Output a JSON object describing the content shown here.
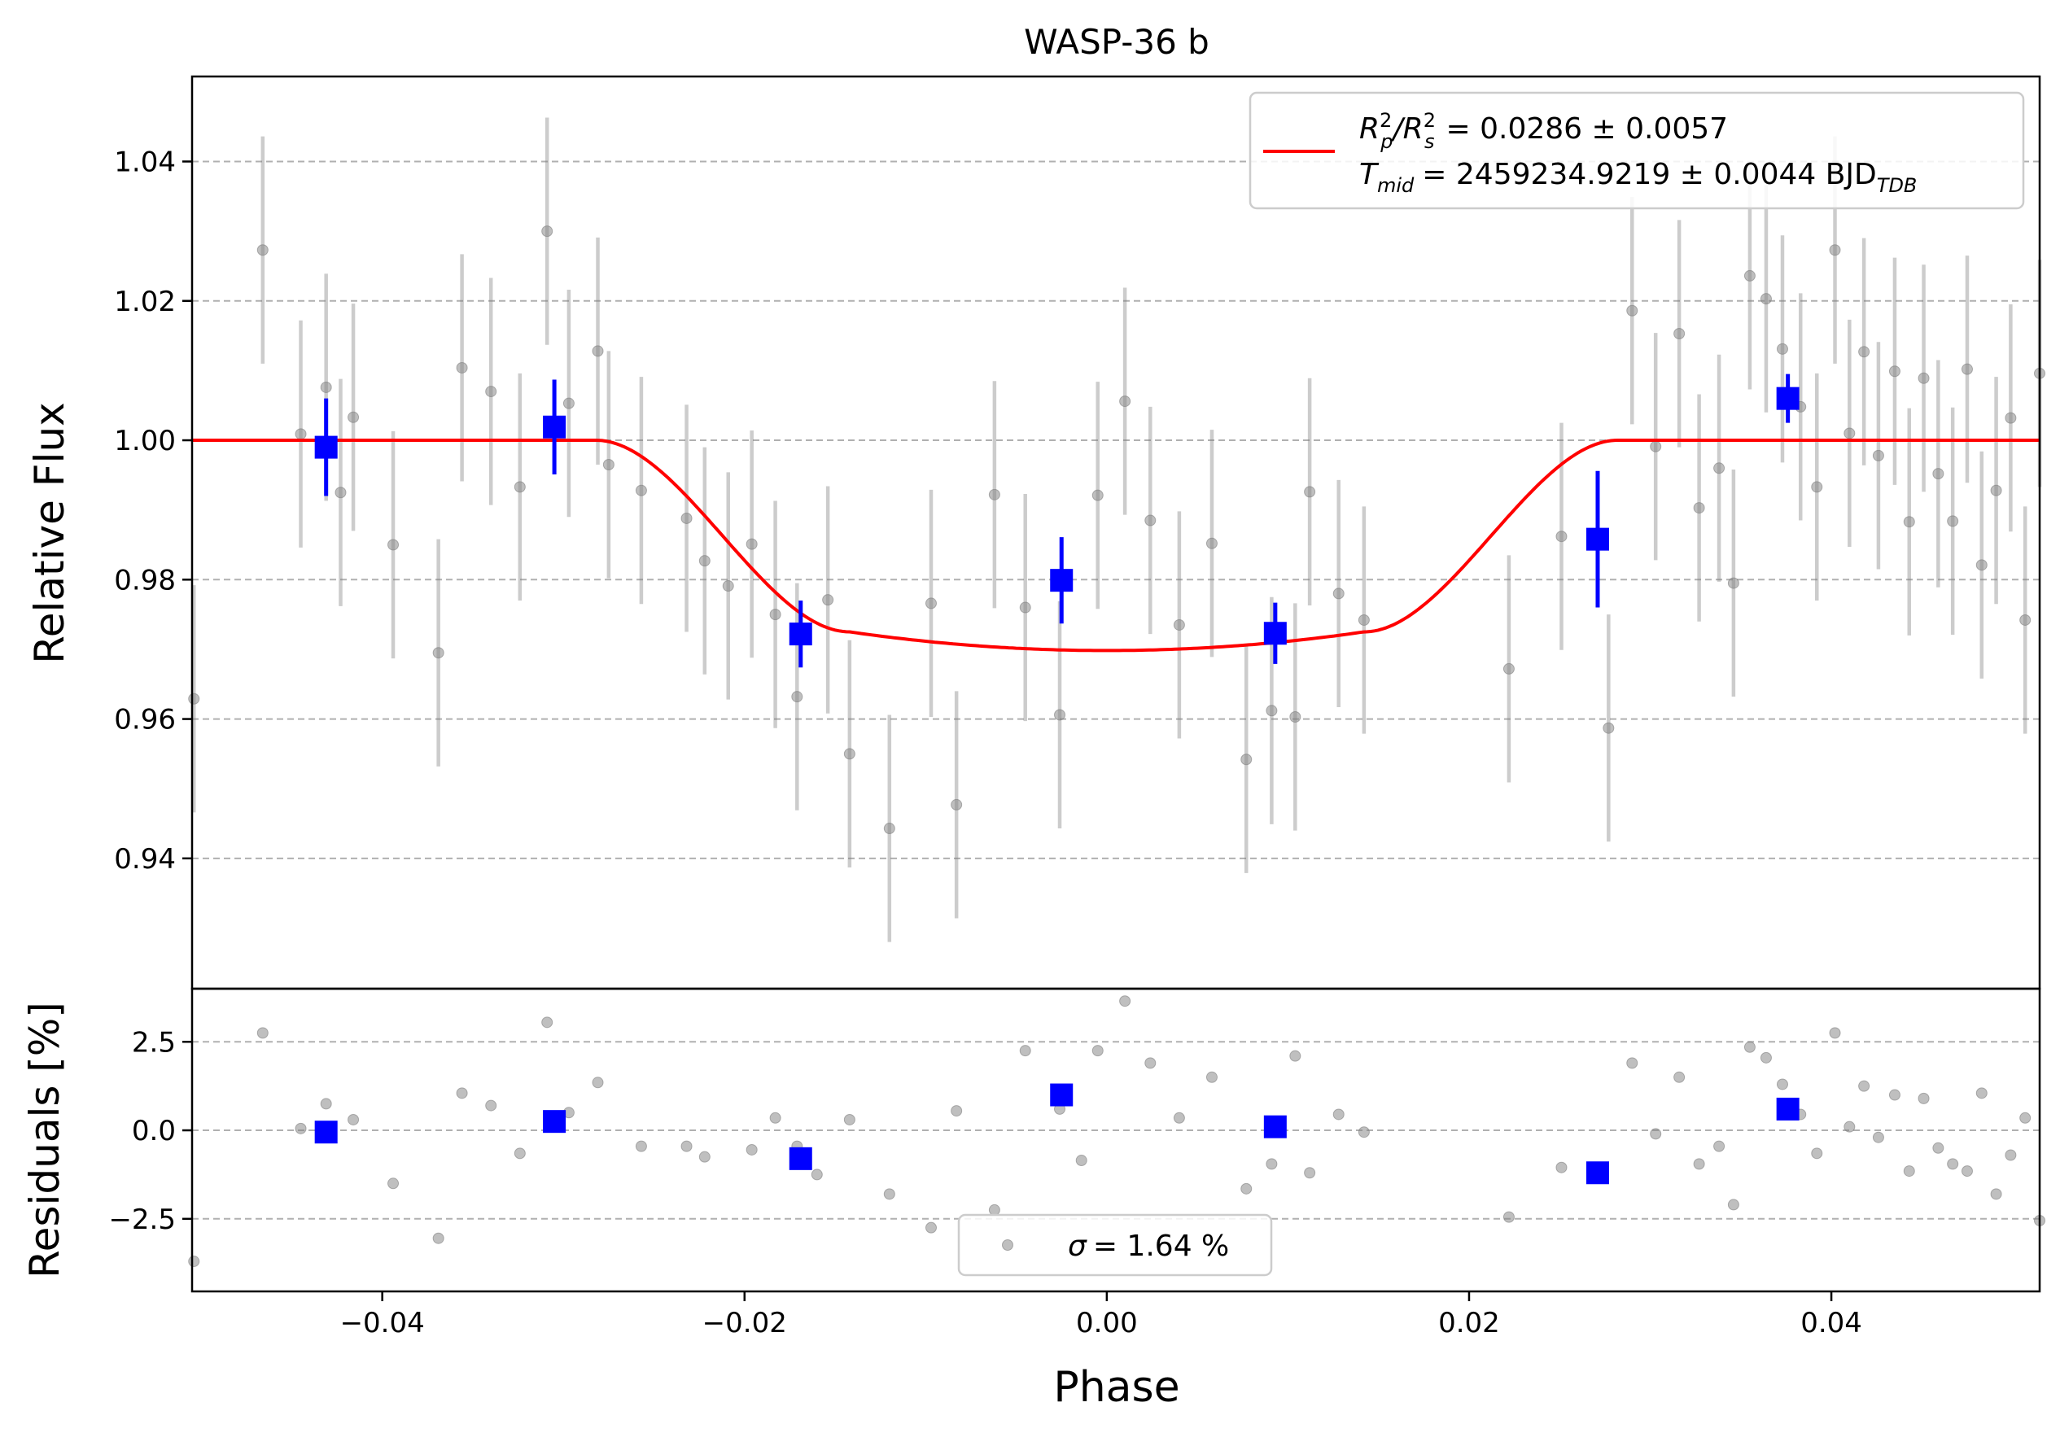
{
  "chart_data": {
    "type": "scatter",
    "title": "WASP-36 b",
    "xlabel": "Phase",
    "xlim": [
      -0.0505,
      0.0515
    ],
    "colors": {
      "raw": "#808080",
      "binned": "#0000ff",
      "model": "#ff0000",
      "grid": "#b0b0b0"
    },
    "top": {
      "ylabel": "Relative Flux",
      "ylim": [
        0.9213,
        1.0522
      ],
      "yticks": [
        0.94,
        0.96,
        0.98,
        1.0,
        1.02,
        1.04
      ],
      "ytick_labels": [
        "0.94",
        "0.96",
        "0.98",
        "1.00",
        "1.02",
        "1.04"
      ],
      "grid": "y-dashed",
      "legend": {
        "placement": "top-right",
        "line1_prefix": "R",
        "line1_sub1": "p",
        "line1_mid": "/R",
        "line1_sub2": "s",
        "line1_value": "= 0.0286 ± 0.0057",
        "line2_prefix": "T",
        "line2_sub": "mid",
        "line2_value": "= 2459234.9219 ± 0.0044 BJD",
        "line2_unit_sub": "TDB"
      },
      "raw": {
        "x": [
          -0.0504,
          -0.0466,
          -0.0445,
          -0.0431,
          -0.0423,
          -0.0416,
          -0.0394,
          -0.0369,
          -0.0356,
          -0.034,
          -0.0324,
          -0.0309,
          -0.0297,
          -0.0281,
          -0.0275,
          -0.0257,
          -0.0232,
          -0.0222,
          -0.0209,
          -0.0196,
          -0.0183,
          -0.0171,
          -0.0154,
          -0.0142,
          -0.012,
          -0.0097,
          -0.0083,
          -0.0062,
          -0.0045,
          -0.0026,
          -0.0005,
          0.001,
          0.0024,
          0.004,
          0.0058,
          0.0077,
          0.0091,
          0.0104,
          0.0112,
          0.0128,
          0.0142,
          0.0222,
          0.0251,
          0.0277,
          0.029,
          0.0303,
          0.0316,
          0.0327,
          0.0338,
          0.0346,
          0.0355,
          0.0364,
          0.0373,
          0.0383,
          0.0392,
          0.0402,
          0.041,
          0.0418,
          0.0426,
          0.0435,
          0.0443,
          0.0451,
          0.0459,
          0.0467,
          0.0475,
          0.0483,
          0.0491,
          0.0499,
          0.0507,
          0.0515
        ],
        "y": [
          0.9629,
          1.0273,
          1.0009,
          1.0076,
          0.9925,
          1.0033,
          0.985,
          0.9695,
          1.0104,
          1.007,
          0.9933,
          1.03,
          1.0053,
          1.0128,
          0.9965,
          0.9928,
          0.9888,
          0.9827,
          0.9791,
          0.9851,
          0.975,
          0.9632,
          0.9771,
          0.955,
          0.9443,
          0.9766,
          0.9477,
          0.9922,
          0.976,
          0.9606,
          0.9921,
          1.0056,
          0.9885,
          0.9735,
          0.9852,
          0.9542,
          0.9612,
          0.9603,
          0.9926,
          0.978,
          0.9742,
          0.9672,
          0.9862,
          0.9587,
          1.0186,
          0.9991,
          1.0153,
          0.9903,
          0.996,
          0.9795,
          1.0236,
          1.0203,
          1.0131,
          1.0048,
          0.9933,
          1.0273,
          1.001,
          1.0127,
          0.9978,
          1.0099,
          0.9883,
          1.0089,
          0.9952,
          0.9884,
          1.0102,
          0.9821,
          0.9928,
          1.0032,
          0.9742,
          1.0096
        ],
        "err": 0.0163
      },
      "binned": {
        "x": [
          -0.0431,
          -0.0305,
          -0.0169,
          -0.0025,
          0.0093,
          0.0271,
          0.0376
        ],
        "y": [
          0.999,
          1.0019,
          0.9722,
          0.9799,
          0.9723,
          0.9858,
          1.006
        ],
        "err": [
          0.007,
          0.0068,
          0.0048,
          0.0062,
          0.0044,
          0.0098,
          0.0035
        ]
      },
      "model": {
        "depth": 0.0286,
        "t1": -0.0282,
        "t2": -0.0142,
        "t3": 0.0142,
        "t4": 0.0282,
        "limb": 0.35
      }
    },
    "bottom": {
      "ylabel": "Residuals [%]",
      "ylim": [
        -4.55,
        4.0
      ],
      "yticks": [
        -2.5,
        0.0,
        2.5
      ],
      "ytick_labels": [
        "−2.5",
        "0.0",
        "2.5"
      ],
      "xticks": [
        -0.04,
        -0.02,
        0.0,
        0.02,
        0.04
      ],
      "xtick_labels": [
        "−0.04",
        "−0.02",
        "0.00",
        "0.02",
        "0.04"
      ],
      "legend": {
        "placement": "bottom-center",
        "symbol": "σ",
        "text": "= 1.64 %"
      },
      "raw": {
        "x": [
          -0.0504,
          -0.0466,
          -0.0445,
          -0.0431,
          -0.0416,
          -0.0394,
          -0.0369,
          -0.0356,
          -0.034,
          -0.0324,
          -0.0309,
          -0.0297,
          -0.0281,
          -0.0257,
          -0.0232,
          -0.0222,
          -0.0196,
          -0.0183,
          -0.0171,
          -0.016,
          -0.0142,
          -0.012,
          -0.0097,
          -0.0083,
          -0.0062,
          -0.0045,
          -0.0026,
          -0.0014,
          -0.0005,
          0.001,
          0.0024,
          0.004,
          0.0058,
          0.0077,
          0.0091,
          0.0104,
          0.0112,
          0.0128,
          0.0142,
          0.0222,
          0.0251,
          0.029,
          0.0303,
          0.0316,
          0.0327,
          0.0338,
          0.0346,
          0.0355,
          0.0364,
          0.0373,
          0.0383,
          0.0392,
          0.0402,
          0.041,
          0.0418,
          0.0426,
          0.0435,
          0.0443,
          0.0451,
          0.0459,
          0.0467,
          0.0475,
          0.0483,
          0.0491,
          0.0499,
          0.0507,
          0.0515
        ],
        "y": [
          -3.7,
          2.75,
          0.05,
          0.75,
          0.3,
          -1.5,
          -3.05,
          1.05,
          0.7,
          -0.65,
          3.05,
          0.5,
          1.35,
          -0.45,
          -0.45,
          -0.75,
          -0.55,
          0.35,
          -0.45,
          -1.25,
          0.3,
          -1.8,
          -2.75,
          0.55,
          -2.25,
          2.25,
          0.6,
          -0.85,
          2.25,
          3.65,
          1.9,
          0.35,
          1.5,
          -1.65,
          -0.95,
          2.1,
          -1.2,
          0.45,
          -0.05,
          -2.45,
          -1.05,
          1.9,
          -0.1,
          1.5,
          -0.95,
          -0.45,
          -2.1,
          2.35,
          2.05,
          1.3,
          0.45,
          -0.65,
          2.75,
          0.1,
          1.25,
          -0.2,
          1.0,
          -1.15,
          0.9,
          -0.5,
          -0.95,
          -1.15,
          1.05,
          -1.8,
          -0.7,
          0.35,
          -2.55
        ]
      },
      "binned": {
        "x": [
          -0.0431,
          -0.0305,
          -0.0169,
          -0.0025,
          0.0093,
          0.0271,
          0.0376
        ],
        "y": [
          -0.05,
          0.25,
          -0.8,
          1.0,
          0.1,
          -1.2,
          0.6
        ]
      }
    }
  }
}
